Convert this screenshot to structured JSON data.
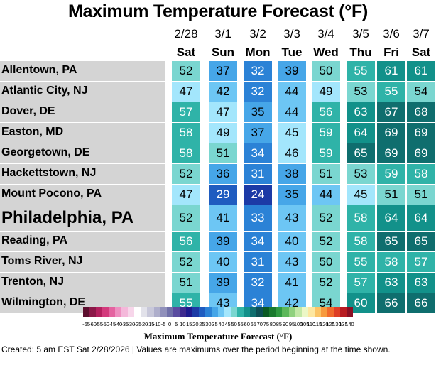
{
  "chart_data": {
    "type": "table",
    "title": "Maximum Temperature Forecast (°F)",
    "columns": [
      {
        "date": "2/28",
        "day": "Sat"
      },
      {
        "date": "3/1",
        "day": "Sun"
      },
      {
        "date": "3/2",
        "day": "Mon"
      },
      {
        "date": "3/3",
        "day": "Tue"
      },
      {
        "date": "3/4",
        "day": "Wed"
      },
      {
        "date": "3/5",
        "day": "Thu"
      },
      {
        "date": "3/6",
        "day": "Fri"
      },
      {
        "date": "3/7",
        "day": "Sat"
      }
    ],
    "rows": [
      {
        "city": "Allentown, PA",
        "values": [
          52,
          37,
          32,
          39,
          50,
          55,
          61,
          61
        ]
      },
      {
        "city": "Atlantic City, NJ",
        "values": [
          47,
          42,
          32,
          44,
          49,
          53,
          55,
          54
        ]
      },
      {
        "city": "Dover, DE",
        "values": [
          57,
          47,
          35,
          44,
          56,
          63,
          67,
          68
        ]
      },
      {
        "city": "Easton, MD",
        "values": [
          58,
          49,
          37,
          45,
          59,
          64,
          69,
          69
        ]
      },
      {
        "city": "Georgetown, DE",
        "values": [
          58,
          51,
          34,
          46,
          59,
          65,
          69,
          69
        ]
      },
      {
        "city": "Hackettstown, NJ",
        "values": [
          52,
          36,
          31,
          38,
          51,
          53,
          59,
          58
        ]
      },
      {
        "city": "Mount Pocono, PA",
        "values": [
          47,
          29,
          24,
          35,
          44,
          45,
          51,
          51
        ]
      },
      {
        "city": "Philadelphia, PA",
        "values": [
          52,
          41,
          33,
          43,
          52,
          58,
          64,
          64
        ],
        "highlight": true
      },
      {
        "city": "Reading, PA",
        "values": [
          56,
          39,
          34,
          40,
          52,
          58,
          65,
          65
        ]
      },
      {
        "city": "Toms River, NJ",
        "values": [
          52,
          40,
          31,
          43,
          50,
          55,
          58,
          57
        ]
      },
      {
        "city": "Trenton, NJ",
        "values": [
          51,
          39,
          32,
          41,
          52,
          57,
          63,
          63
        ]
      },
      {
        "city": "Wilmington, DE",
        "values": [
          55,
          43,
          34,
          42,
          54,
          60,
          66,
          66
        ]
      }
    ],
    "colorbar": {
      "label": "Maximum Temperature Forecast (°F)",
      "min": -65,
      "max": 140,
      "step": 5,
      "tick_labels": [
        "-65",
        "-60",
        "-55",
        "-50",
        "-45",
        "-40",
        "-35",
        "-30",
        "-25",
        "-20",
        "-15",
        "-10",
        "-5",
        "0",
        "5",
        "10",
        "15",
        "20",
        "25",
        "30",
        "35",
        "40",
        "45",
        "50",
        "55",
        "60",
        "65",
        "70",
        "75",
        "80",
        "85",
        "90",
        "95",
        "100",
        "105",
        "110",
        "115",
        "120",
        "125",
        "130",
        "135",
        "140"
      ],
      "colors": [
        "#5c0f2e",
        "#8b1848",
        "#b3205e",
        "#d33a7c",
        "#e463a0",
        "#ee8fc0",
        "#f4b8da",
        "#f7d6ea",
        "#ffffff",
        "#e2e2ea",
        "#c8c8da",
        "#aeaecb",
        "#9090bb",
        "#7070a9",
        "#5a4ca0",
        "#3e2a8f",
        "#1e1a8e",
        "#1c3aa6",
        "#1f5cc0",
        "#2b82d6",
        "#46a6e8",
        "#6dc6f4",
        "#a3e6fc",
        "#7ad6d0",
        "#2fb3a8",
        "#12918a",
        "#0f6e6e",
        "#0d4f54",
        "#0a5a24",
        "#1a7a2e",
        "#2f9a40",
        "#5cb85a",
        "#8fd17e",
        "#c2e8a6",
        "#ecf7c6",
        "#fde7a0",
        "#fbc465",
        "#f79a3e",
        "#f06b2c",
        "#de3e25",
        "#b81c22",
        "#8a0f24"
      ]
    }
  },
  "footer": "Created: 5 am EST Sat 2/28/2026  |  Values are maximums over the period beginning at the time shown."
}
